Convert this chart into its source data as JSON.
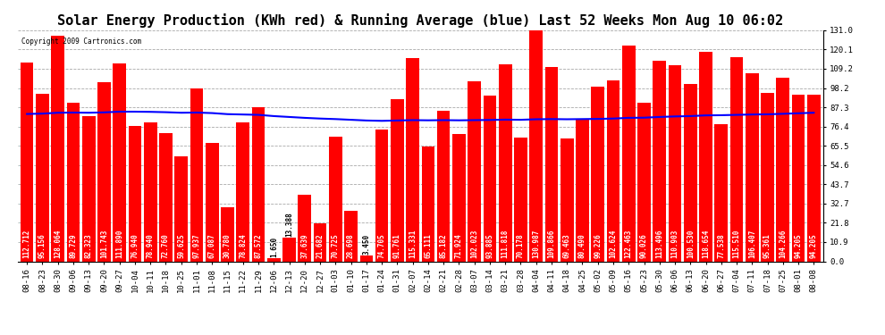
{
  "title": "Solar Energy Production (KWh red) & Running Average (blue) Last 52 Weeks Mon Aug 10 06:02",
  "copyright": "Copyright 2009 Cartronics.com",
  "bar_color": "#ff0000",
  "avg_line_color": "#0000ff",
  "background_color": "#ffffff",
  "plot_bg_color": "#ffffff",
  "grid_color": "#aaaaaa",
  "categories": [
    "08-16",
    "08-23",
    "08-30",
    "09-06",
    "09-13",
    "09-20",
    "09-27",
    "10-04",
    "10-11",
    "10-18",
    "10-25",
    "11-01",
    "11-08",
    "11-15",
    "11-22",
    "11-29",
    "12-06",
    "12-13",
    "12-20",
    "12-27",
    "01-03",
    "01-10",
    "01-17",
    "01-24",
    "01-31",
    "02-07",
    "02-14",
    "02-21",
    "02-28",
    "03-07",
    "03-14",
    "03-21",
    "03-28",
    "04-04",
    "04-11",
    "04-18",
    "04-25",
    "05-02",
    "05-09",
    "05-16",
    "05-23",
    "05-30",
    "06-06",
    "06-13",
    "06-20",
    "06-27",
    "07-04",
    "07-11",
    "07-18",
    "07-25",
    "08-01",
    "08-08"
  ],
  "values": [
    112.712,
    95.156,
    128.064,
    89.729,
    82.323,
    101.743,
    111.89,
    76.94,
    78.94,
    72.76,
    59.625,
    97.937,
    67.087,
    30.78,
    78.824,
    87.572,
    1.65,
    13.388,
    37.639,
    21.682,
    70.725,
    28.698,
    3.45,
    74.705,
    91.761,
    115.331,
    65.111,
    85.182,
    71.924,
    102.023,
    93.885,
    111.818,
    70.178,
    130.987,
    109.866,
    69.463,
    80.49,
    99.226,
    102.624,
    122.463,
    90.026,
    113.496,
    110.903,
    100.53,
    118.654,
    77.538,
    115.51,
    106.407,
    95.361,
    104.266,
    94.205,
    94.205
  ],
  "running_avg": [
    83.5,
    83.7,
    84.2,
    84.3,
    84.2,
    84.4,
    84.8,
    84.8,
    84.7,
    84.5,
    84.2,
    84.3,
    84.0,
    83.4,
    83.2,
    83.0,
    82.3,
    81.8,
    81.3,
    80.9,
    80.6,
    80.2,
    79.8,
    79.6,
    79.8,
    80.0,
    79.9,
    80.0,
    79.9,
    80.0,
    80.1,
    80.3,
    80.2,
    80.5,
    80.6,
    80.5,
    80.6,
    80.7,
    80.9,
    81.3,
    81.4,
    81.8,
    82.1,
    82.3,
    82.7,
    82.8,
    83.0,
    83.2,
    83.3,
    83.6,
    83.9,
    84.2
  ],
  "yticks": [
    0.0,
    10.9,
    21.8,
    32.7,
    43.7,
    54.6,
    65.5,
    76.4,
    87.3,
    98.2,
    109.2,
    120.1,
    131.0
  ],
  "ymin": 0.0,
  "ymax": 131.0,
  "title_fontsize": 11,
  "tick_fontsize": 6.5,
  "label_fontsize": 5.5
}
